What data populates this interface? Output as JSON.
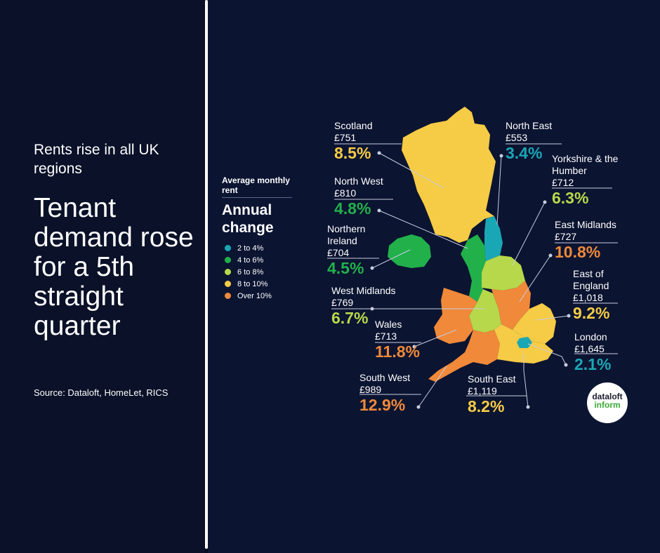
{
  "subtitle": "Rents rise in all UK regions",
  "headline": "Tenant demand rose for a 5th straight quarter",
  "source": "Source: Dataloft, HomeLet, RICS",
  "legend": {
    "subtitle": "Average monthly rent",
    "title": "Annual change",
    "items": [
      {
        "label": "2 to 4%",
        "color": "#1aa7b5"
      },
      {
        "label": "4 to 6%",
        "color": "#22b04b"
      },
      {
        "label": "6 to 8%",
        "color": "#b7d84a"
      },
      {
        "label": "8 to 10%",
        "color": "#f6cb45"
      },
      {
        "label": "Over 10%",
        "color": "#f0893a"
      }
    ]
  },
  "regions": {
    "scotland": {
      "name": "Scotland",
      "rent": "£751",
      "change": "8.5%",
      "color": "#f6cb45"
    },
    "north_east": {
      "name": "North East",
      "rent": "£553",
      "change": "3.4%",
      "color": "#1aa7b5"
    },
    "yorkshire": {
      "name": "Yorkshire & the Humber",
      "rent": "£712",
      "change": "6.3%",
      "color": "#b7d84a"
    },
    "north_west": {
      "name": "North West",
      "rent": "£810",
      "change": "4.8%",
      "color": "#22b04b"
    },
    "northern_ireland": {
      "name": "Northern Ireland",
      "rent": "£704",
      "change": "4.5%",
      "color": "#22b04b"
    },
    "east_midlands": {
      "name": "East Midlands",
      "rent": "£727",
      "change": "10.8%",
      "color": "#f0893a"
    },
    "west_midlands": {
      "name": "West Midlands",
      "rent": "£769",
      "change": "6.7%",
      "color": "#b7d84a"
    },
    "east_of_england": {
      "name": "East of England",
      "rent": "£1,018",
      "change": "9.2%",
      "color": "#f6cb45"
    },
    "wales": {
      "name": "Wales",
      "rent": "£713",
      "change": "11.8%",
      "color": "#f0893a"
    },
    "london": {
      "name": "London",
      "rent": "£1,645",
      "change": "2.1%",
      "color": "#1aa7b5"
    },
    "south_west": {
      "name": "South West",
      "rent": "£989",
      "change": "12.9%",
      "color": "#f0893a"
    },
    "south_east": {
      "name": "South East",
      "rent": "£1,119",
      "change": "8.2%",
      "color": "#f6cb45"
    }
  },
  "logo": {
    "line1": "dataloft",
    "line2": "inform"
  }
}
